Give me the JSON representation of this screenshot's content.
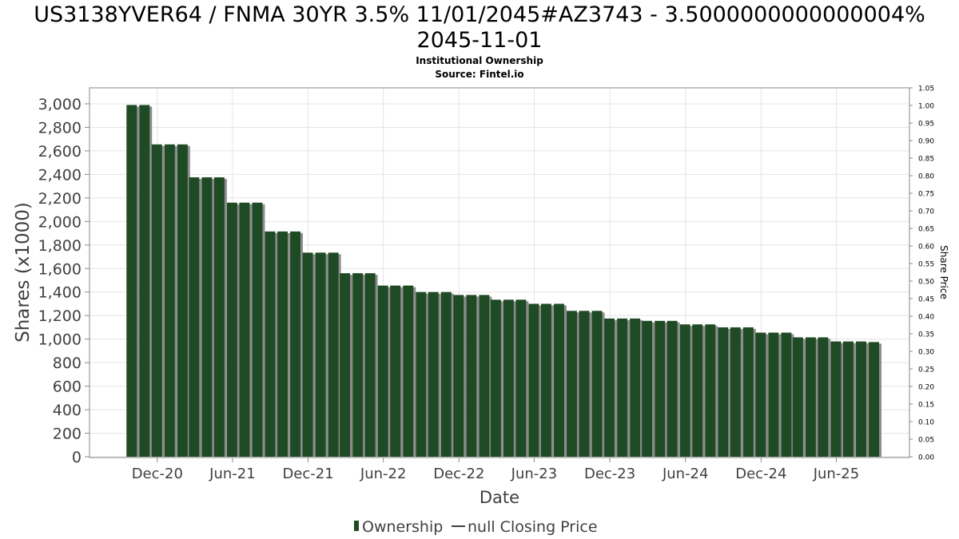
{
  "chart_data": {
    "type": "bar",
    "title_lines": [
      "US3138YVER64 / FNMA 30YR 3.5% 11/01/2045#AZ3743 - 3.5000000000000004%",
      "2045-11-01"
    ],
    "subtitle": "Institutional Ownership",
    "source": "Source: Fintel.io",
    "xlabel": "Date",
    "ylabel": "Shares (x1000)",
    "y2label": "Share Price",
    "ylim": [
      0,
      3100
    ],
    "y2lim": [
      0,
      1.05
    ],
    "yticks": [
      0,
      200,
      400,
      600,
      800,
      1000,
      1200,
      1400,
      1600,
      1800,
      2000,
      2200,
      2400,
      2600,
      2800,
      3000
    ],
    "ytick_labels": [
      "0",
      "200",
      "400",
      "600",
      "800",
      "1,000",
      "1,200",
      "1,400",
      "1,600",
      "1,800",
      "2,000",
      "2,200",
      "2,400",
      "2,600",
      "2,800",
      "3,000"
    ],
    "y2ticks": [
      0,
      0.05,
      0.1,
      0.15,
      0.2,
      0.25,
      0.3,
      0.35,
      0.4,
      0.45,
      0.5,
      0.55,
      0.6,
      0.65,
      0.7,
      0.75,
      0.8,
      0.85,
      0.9,
      0.95,
      1.0,
      1.05
    ],
    "y2tick_labels": [
      "0.00",
      "0.05",
      "0.10",
      "0.15",
      "0.20",
      "0.25",
      "0.30",
      "0.35",
      "0.40",
      "0.45",
      "0.50",
      "0.55",
      "0.60",
      "0.65",
      "0.70",
      "0.75",
      "0.80",
      "0.85",
      "0.90",
      "0.95",
      "1.00",
      "1.05"
    ],
    "xlim": [
      "2020-06-20",
      "2025-11-25"
    ],
    "xticks": [
      "2020-12-01",
      "2021-06-01",
      "2021-12-01",
      "2022-06-01",
      "2022-12-01",
      "2023-06-01",
      "2023-12-01",
      "2024-06-01",
      "2024-12-01",
      "2025-06-01"
    ],
    "xtick_labels": [
      "Dec-20",
      "Jun-21",
      "Dec-21",
      "Jun-22",
      "Dec-22",
      "Jun-23",
      "Dec-23",
      "Jun-24",
      "Dec-24",
      "Jun-25"
    ],
    "grid": true,
    "legend_position": "bottom",
    "bar_color": "#1e4a24",
    "series": [
      {
        "name": "Ownership",
        "x": [
          "2020-09-30",
          "2020-10-31",
          "2020-11-30",
          "2020-12-31",
          "2021-01-31",
          "2021-02-28",
          "2021-03-31",
          "2021-04-30",
          "2021-05-31",
          "2021-06-30",
          "2021-07-31",
          "2021-08-31",
          "2021-09-30",
          "2021-10-31",
          "2021-11-30",
          "2021-12-31",
          "2022-01-31",
          "2022-02-28",
          "2022-03-31",
          "2022-04-30",
          "2022-05-31",
          "2022-06-30",
          "2022-07-31",
          "2022-08-31",
          "2022-09-30",
          "2022-10-31",
          "2022-11-30",
          "2022-12-31",
          "2023-01-31",
          "2023-02-28",
          "2023-03-31",
          "2023-04-30",
          "2023-05-31",
          "2023-06-30",
          "2023-07-31",
          "2023-08-31",
          "2023-09-30",
          "2023-10-31",
          "2023-11-30",
          "2023-12-31",
          "2024-01-31",
          "2024-02-29",
          "2024-03-31",
          "2024-04-30",
          "2024-05-31",
          "2024-06-30",
          "2024-07-31",
          "2024-08-31",
          "2024-09-30",
          "2024-10-31",
          "2024-11-30",
          "2024-12-31",
          "2025-01-31",
          "2025-02-28",
          "2025-03-31",
          "2025-04-30",
          "2025-05-31",
          "2025-06-30",
          "2025-07-31",
          "2025-08-31"
        ],
        "values": [
          2990,
          2990,
          2655,
          2655,
          2655,
          2375,
          2375,
          2375,
          2160,
          2160,
          2160,
          1915,
          1915,
          1915,
          1735,
          1735,
          1735,
          1560,
          1560,
          1560,
          1455,
          1455,
          1455,
          1400,
          1400,
          1400,
          1375,
          1375,
          1375,
          1335,
          1335,
          1335,
          1300,
          1300,
          1300,
          1240,
          1240,
          1240,
          1175,
          1175,
          1175,
          1155,
          1155,
          1155,
          1125,
          1125,
          1125,
          1100,
          1100,
          1100,
          1055,
          1055,
          1055,
          1015,
          1015,
          1015,
          980,
          980,
          980,
          975
        ]
      },
      {
        "name": "null Closing Price",
        "values": []
      }
    ]
  },
  "legend": {
    "ownership_label": "Ownership",
    "price_label": "null Closing Price"
  }
}
